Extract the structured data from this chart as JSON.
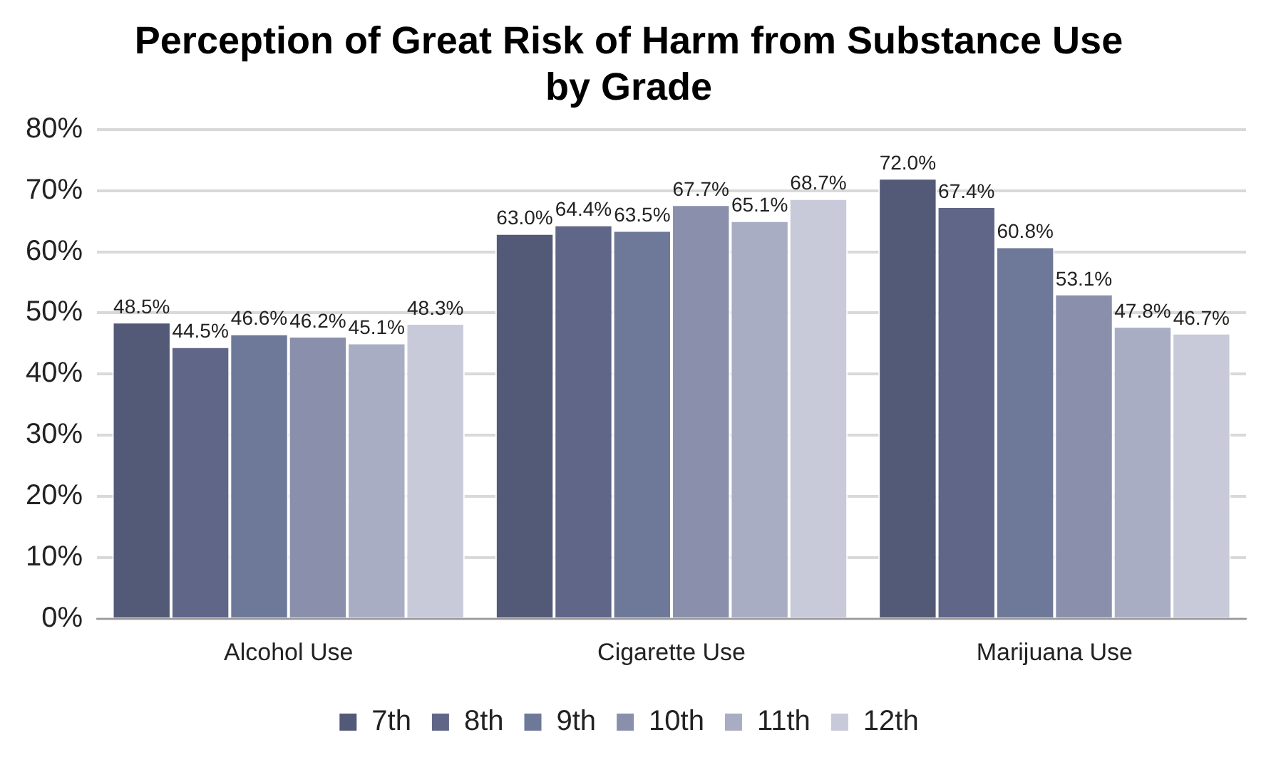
{
  "chart_data": {
    "type": "bar",
    "title": "Perception of Great Risk of Harm from Substance Use\nby Grade",
    "categories": [
      "Alcohol Use",
      "Cigarette Use",
      "Marijuana Use"
    ],
    "series": [
      {
        "name": "7th",
        "color": "#525a77",
        "values": [
          48.5,
          63.0,
          72.0
        ],
        "value_labels": [
          "48.5%",
          "63.0%",
          "72.0%"
        ]
      },
      {
        "name": "8th",
        "color": "#5f6688",
        "values": [
          44.5,
          64.4,
          67.4
        ],
        "value_labels": [
          "44.5%",
          "64.4%",
          "67.4%"
        ]
      },
      {
        "name": "9th",
        "color": "#6e7899",
        "values": [
          46.6,
          63.5,
          60.8
        ],
        "value_labels": [
          "46.6%",
          "63.5%",
          "60.8%"
        ]
      },
      {
        "name": "10th",
        "color": "#8a90ab",
        "values": [
          46.2,
          67.7,
          53.1
        ],
        "value_labels": [
          "46.2%",
          "67.7%",
          "53.1%"
        ]
      },
      {
        "name": "11th",
        "color": "#a9adc4",
        "values": [
          45.1,
          65.1,
          47.8
        ],
        "value_labels": [
          "45.1%",
          "65.1%",
          "47.8%"
        ]
      },
      {
        "name": "12th",
        "color": "#c8cad9",
        "values": [
          48.3,
          68.7,
          46.7
        ],
        "value_labels": [
          "48.3%",
          "68.7%",
          "46.7%"
        ]
      }
    ],
    "ylim": [
      0,
      80
    ],
    "yticks": [
      {
        "value": 0,
        "label": "0%"
      },
      {
        "value": 10,
        "label": "10%"
      },
      {
        "value": 20,
        "label": "20%"
      },
      {
        "value": 30,
        "label": "30%"
      },
      {
        "value": 40,
        "label": "40%"
      },
      {
        "value": 50,
        "label": "50%"
      },
      {
        "value": 60,
        "label": "60%"
      },
      {
        "value": 70,
        "label": "70%"
      },
      {
        "value": 80,
        "label": "80%"
      }
    ],
    "grid": "y",
    "legend": "bottom"
  }
}
